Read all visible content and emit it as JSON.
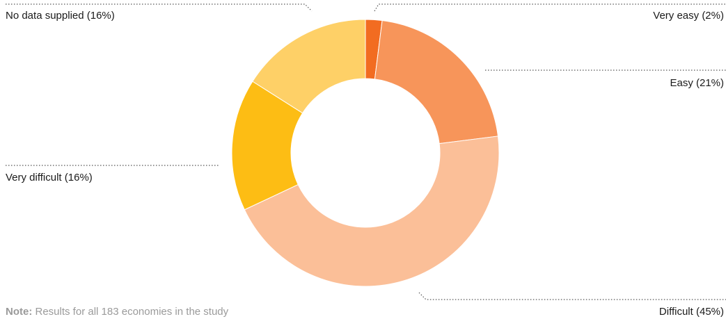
{
  "chart_data": {
    "type": "pie",
    "variant": "donut",
    "categories": [
      "Very easy",
      "Easy",
      "Difficult",
      "Very difficult",
      "No data supplied"
    ],
    "values": [
      2,
      21,
      45,
      16,
      16
    ],
    "unit": "%",
    "labels": [
      "Very easy (2%)",
      "Easy (21%)",
      "Difficult (45%)",
      "Very difficult (16%)",
      "No data supplied (16%)"
    ],
    "colors": [
      "#f26c21",
      "#f7955a",
      "#fbbf98",
      "#fdbd14",
      "#fed067"
    ],
    "legend": "none"
  },
  "note": {
    "prefix": "Note:",
    "text": " Results for all 183 economies in the study"
  }
}
